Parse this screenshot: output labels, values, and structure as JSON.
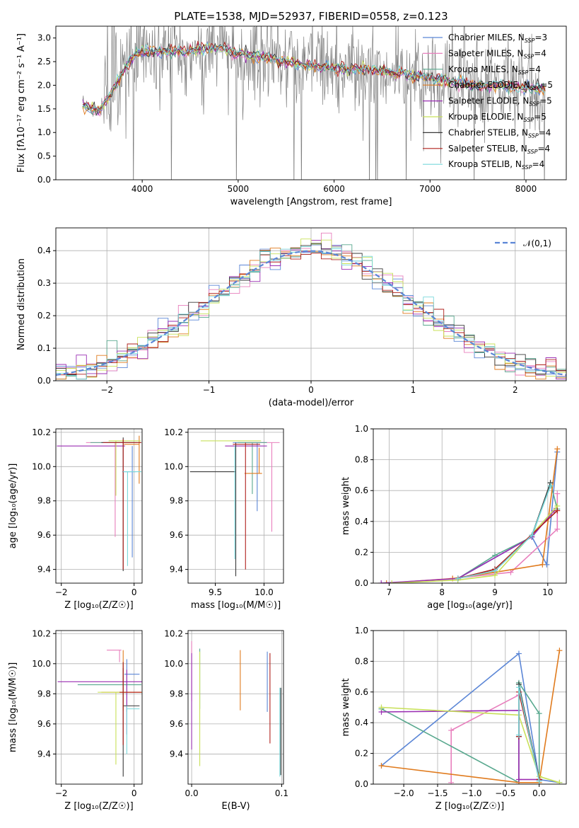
{
  "figure": {
    "title": "PLATE=1538, MJD=52937, FIBERID=0558, z=0.123"
  },
  "series_styles": [
    {
      "name": "Chabrier MILES",
      "nssp": "3",
      "color": "#5b86d6"
    },
    {
      "name": "Salpeter MILES",
      "nssp": "4",
      "color": "#e87fbd"
    },
    {
      "name": "Kroupa MILES",
      "nssp": "4",
      "color": "#58a88e"
    },
    {
      "name": "Chabrier ELODIE",
      "nssp": "5",
      "color": "#e07b1e"
    },
    {
      "name": "Salpeter ELODIE",
      "nssp": "5",
      "color": "#9a2fb3"
    },
    {
      "name": "Kroupa ELODIE",
      "nssp": "5",
      "color": "#c8e05a"
    },
    {
      "name": "Chabrier STELIB",
      "nssp": "4",
      "color": "#3a3a3a"
    },
    {
      "name": "Salpeter STELIB",
      "nssp": "4",
      "color": "#b0201c"
    },
    {
      "name": "Kroupa STELIB",
      "nssp": "4",
      "color": "#78d8dc"
    }
  ],
  "chart_data": [
    {
      "id": "spectrum",
      "type": "line",
      "xlabel": "wavelength [Angstrom, rest frame]",
      "ylabel": "Flux [fλ10⁻¹⁷ erg cm⁻² s⁻¹ A⁻¹]",
      "xlim": [
        3100,
        8420
      ],
      "ylim": [
        0,
        3.25
      ],
      "xticks": [
        4000,
        5000,
        6000,
        7000,
        8000
      ],
      "yticks": [
        0.0,
        0.5,
        1.0,
        1.5,
        2.0,
        2.5,
        3.0
      ],
      "data_color": "#808080",
      "continuum": {
        "x": [
          3380,
          3550,
          3700,
          3800,
          3900,
          4000,
          4100,
          4300,
          4500,
          4800,
          5000,
          5300,
          5600,
          6000,
          6300,
          6600,
          7000,
          7400,
          7800,
          8200
        ],
        "y": [
          1.58,
          1.45,
          1.9,
          2.3,
          2.6,
          2.72,
          2.72,
          2.7,
          2.75,
          2.8,
          2.67,
          2.58,
          2.45,
          2.35,
          2.35,
          2.27,
          2.15,
          2.0,
          1.98,
          1.93
        ]
      },
      "legend": {
        "position": "upper right",
        "nssp_label": "N"
      }
    },
    {
      "id": "residual-histogram",
      "type": "histogram",
      "xlabel": "(data-model)/error",
      "ylabel": "Normed distribution",
      "xlim": [
        -2.5,
        2.5
      ],
      "ylim": [
        0,
        0.47
      ],
      "xticks": [
        -2,
        -1,
        0,
        1,
        2
      ],
      "yticks": [
        0.0,
        0.1,
        0.2,
        0.3,
        0.4
      ],
      "bin_width": 0.1,
      "reference": {
        "label": "𝒩(0,1)",
        "color": "#5b86d6",
        "mean": 0,
        "sigma": 1
      },
      "legend": {
        "position": "upper right"
      }
    },
    {
      "id": "age-vs-Z",
      "type": "errorbar",
      "xlabel": "Z [log₁₀(Z/Z☉)]",
      "ylabel": "age  [log₁₀(age/yr)]",
      "xlim": [
        -2.15,
        0.22
      ],
      "ylim": [
        9.32,
        10.22
      ],
      "xticks": [
        -2,
        0
      ],
      "yticks": [
        9.4,
        9.6,
        9.8,
        10.0,
        10.2
      ],
      "points": [
        {
          "x": -0.05,
          "y": 9.97,
          "xerr": [
            0.27,
            0.1
          ],
          "yerr": [
            0.5,
            0.15
          ],
          "series": 0
        },
        {
          "x": -0.52,
          "y": 10.14,
          "xerr": [
            0.8,
            0.6
          ],
          "yerr": [
            0.55,
            0.0
          ],
          "series": 1
        },
        {
          "x": -0.3,
          "y": 10.14,
          "xerr": [
            0.9,
            0.3
          ],
          "yerr": [
            0.0,
            0.0
          ],
          "series": 2
        },
        {
          "x": 0.14,
          "y": 10.13,
          "xerr": [
            0.42,
            0.0
          ],
          "yerr": [
            0.23,
            0.05
          ],
          "series": 3
        },
        {
          "x": -0.3,
          "y": 10.12,
          "xerr": [
            1.82,
            0.05
          ],
          "yerr": [
            0.0,
            0.0
          ],
          "series": 4
        },
        {
          "x": -0.5,
          "y": 10.15,
          "xerr": [
            0.2,
            0.68
          ],
          "yerr": [
            0.32,
            0.0
          ],
          "series": 5
        },
        {
          "x": -0.3,
          "y": 10.14,
          "xerr": [
            0.6,
            0.48
          ],
          "yerr": [
            0.75,
            0.03
          ],
          "series": 6
        },
        {
          "x": -0.3,
          "y": 10.14,
          "xerr": [
            0.55,
            0.5
          ],
          "yerr": [
            0.74,
            0.02
          ],
          "series": 7
        },
        {
          "x": -0.18,
          "y": 9.97,
          "xerr": [
            0.12,
            0.38
          ],
          "yerr": [
            0.55,
            0.0
          ],
          "series": 8
        }
      ]
    },
    {
      "id": "age-vs-mass",
      "type": "errorbar",
      "xlabel": "mass [log₁₀(M/M☉)]",
      "xlim": [
        9.22,
        10.2
      ],
      "ylim": [
        9.32,
        10.22
      ],
      "xticks": [
        9.5,
        10.0
      ],
      "yticks": [
        9.4,
        9.6,
        9.8,
        10.0,
        10.2
      ],
      "points": [
        {
          "x": 9.93,
          "y": 10.14,
          "xerr": [
            0.25,
            0.1
          ],
          "yerr": [
            0.4,
            0.0
          ],
          "series": 0
        },
        {
          "x": 10.08,
          "y": 10.14,
          "xerr": [
            0.25,
            0.08
          ],
          "yerr": [
            0.52,
            0.0
          ],
          "series": 1
        },
        {
          "x": 9.88,
          "y": 10.14,
          "xerr": [
            0.15,
            0.15
          ],
          "yerr": [
            0.3,
            0.0
          ],
          "series": 2
        },
        {
          "x": 9.95,
          "y": 9.96,
          "xerr": [
            0.15,
            0.03
          ],
          "yerr": [
            0.0,
            0.15
          ],
          "series": 3
        },
        {
          "x": 9.95,
          "y": 10.12,
          "xerr": [
            0.35,
            0.08
          ],
          "yerr": [
            0.0,
            0.0
          ],
          "series": 4
        },
        {
          "x": 9.75,
          "y": 10.15,
          "xerr": [
            0.4,
            0.22
          ],
          "yerr": [
            0.0,
            0.0
          ],
          "series": 5
        },
        {
          "x": 9.71,
          "y": 9.97,
          "xerr": [
            0.47,
            0.0
          ],
          "yerr": [
            0.61,
            0.17
          ],
          "series": 6
        },
        {
          "x": 9.81,
          "y": 10.13,
          "xerr": [
            0.13,
            0.15
          ],
          "yerr": [
            0.73,
            0.01
          ],
          "series": 7
        },
        {
          "x": 9.7,
          "y": 9.97,
          "xerr": [
            0.0,
            0.0
          ],
          "yerr": [
            0.51,
            0.15
          ],
          "series": 8
        }
      ]
    },
    {
      "id": "weight-vs-age",
      "type": "line",
      "xlabel": "age  [log₁₀(age/yr)]",
      "ylabel": "mass weight",
      "xlim": [
        6.7,
        10.35
      ],
      "ylim": [
        0,
        1.0
      ],
      "xticks": [
        7,
        8,
        9,
        10
      ],
      "yticks": [
        0.0,
        0.2,
        0.4,
        0.6,
        0.8,
        1.0
      ],
      "series": [
        {
          "x": [
            8.3,
            9.7,
            9.98,
            10.18
          ],
          "y": [
            0.03,
            0.3,
            0.12,
            0.85
          ]
        },
        {
          "x": [
            8.2,
            9.3,
            10.18,
            10.18
          ],
          "y": [
            0.03,
            0.07,
            0.35,
            0.58
          ]
        },
        {
          "x": [
            8.3,
            9.0,
            9.7,
            10.05,
            10.18
          ],
          "y": [
            0.03,
            0.18,
            0.3,
            0.65,
            0.48
          ]
        },
        {
          "x": [
            6.95,
            8.2,
            9.0,
            9.9,
            10.18
          ],
          "y": [
            0.0,
            0.03,
            0.07,
            0.12,
            0.87
          ]
        },
        {
          "x": [
            6.85,
            8.3,
            9.7,
            10.12
          ],
          "y": [
            0.0,
            0.03,
            0.3,
            0.47
          ]
        },
        {
          "x": [
            7.05,
            8.3,
            9.0,
            10.18
          ],
          "y": [
            0.0,
            0.02,
            0.05,
            0.5
          ]
        },
        {
          "x": [
            8.3,
            9.0,
            9.7,
            10.05
          ],
          "y": [
            0.03,
            0.09,
            0.31,
            0.65
          ]
        },
        {
          "x": [
            8.3,
            9.0,
            10.18
          ],
          "y": [
            0.03,
            0.09,
            0.47
          ]
        },
        {
          "x": [
            8.3,
            9.0,
            9.7,
            10.05
          ],
          "y": [
            0.03,
            0.08,
            0.31,
            0.63
          ]
        }
      ]
    },
    {
      "id": "mass-vs-Z",
      "type": "errorbar",
      "xlabel": "Z [log₁₀(Z/Z☉)]",
      "ylabel": "mass [log₁₀(M/M☉)]",
      "xlim": [
        -2.15,
        0.22
      ],
      "ylim": [
        9.2,
        10.22
      ],
      "xticks": [
        -2,
        0
      ],
      "yticks": [
        9.4,
        9.6,
        9.8,
        10.0,
        10.2
      ],
      "points": [
        {
          "x": -0.2,
          "y": 9.93,
          "xerr": [
            0.07,
            0.35
          ],
          "yerr": [
            0.25,
            0.1
          ],
          "series": 0
        },
        {
          "x": -0.4,
          "y": 10.09,
          "xerr": [
            0.35,
            0.05
          ],
          "yerr": [
            0.08,
            0.0
          ],
          "series": 1
        },
        {
          "x": -0.3,
          "y": 9.86,
          "xerr": [
            1.25,
            0.5
          ],
          "yerr": [
            0.15,
            0.15
          ],
          "series": 2
        },
        {
          "x": -0.3,
          "y": 9.81,
          "xerr": [
            0.6,
            0.6
          ],
          "yerr": [
            0.12,
            0.28
          ],
          "series": 3
        },
        {
          "x": -0.2,
          "y": 9.88,
          "xerr": [
            1.9,
            0.45
          ],
          "yerr": [
            0.35,
            0.08
          ],
          "series": 4
        },
        {
          "x": -0.5,
          "y": 9.81,
          "xerr": [
            0.5,
            0.3
          ],
          "yerr": [
            0.48,
            0.0
          ],
          "series": 5
        },
        {
          "x": -0.3,
          "y": 9.72,
          "xerr": [
            0.0,
            0.45
          ],
          "yerr": [
            0.47,
            0.25
          ],
          "series": 6
        },
        {
          "x": -0.3,
          "y": 9.81,
          "xerr": [
            0.1,
            0.5
          ],
          "yerr": [
            0.35,
            0.2
          ],
          "series": 7
        },
        {
          "x": -0.2,
          "y": 9.7,
          "xerr": [
            0.0,
            0.35
          ],
          "yerr": [
            0.3,
            0.02
          ],
          "series": 8
        }
      ]
    },
    {
      "id": "mass-vs-ebv",
      "type": "errorbar",
      "xlabel": "E(B-V)",
      "xlim": [
        -0.004,
        0.102
      ],
      "ylim": [
        9.2,
        10.22
      ],
      "xticks": [
        0.0,
        0.1
      ],
      "yticks": [
        9.4,
        9.6,
        9.8,
        10.0,
        10.2
      ],
      "points": [
        {
          "x": 0.084,
          "y": 9.88,
          "xerr": [
            0,
            0
          ],
          "yerr": [
            0.2,
            0.2
          ],
          "series": 0
        },
        {
          "x": 0.0,
          "y": 10.0,
          "xerr": [
            0,
            0
          ],
          "yerr": [
            0.25,
            0.15
          ],
          "series": 1
        },
        {
          "x": 0.009,
          "y": 9.9,
          "xerr": [
            0,
            0
          ],
          "yerr": [
            0.2,
            0.2
          ],
          "series": 2
        },
        {
          "x": 0.054,
          "y": 9.89,
          "xerr": [
            0,
            0
          ],
          "yerr": [
            0.2,
            0.2
          ],
          "series": 3
        },
        {
          "x": 0.0,
          "y": 9.75,
          "xerr": [
            0,
            0
          ],
          "yerr": [
            0.32,
            0.32
          ],
          "series": 4
        },
        {
          "x": 0.009,
          "y": 9.7,
          "xerr": [
            0,
            0
          ],
          "yerr": [
            0.38,
            0.38
          ],
          "series": 5
        },
        {
          "x": 0.099,
          "y": 9.55,
          "xerr": [
            0,
            0
          ],
          "yerr": [
            0.29,
            0.29
          ],
          "series": 6
        },
        {
          "x": 0.087,
          "y": 9.82,
          "xerr": [
            0,
            0
          ],
          "yerr": [
            0.35,
            0.25
          ],
          "series": 7
        },
        {
          "x": 0.098,
          "y": 9.6,
          "xerr": [
            0,
            0
          ],
          "yerr": [
            0.35,
            0.24
          ],
          "series": 8
        }
      ]
    },
    {
      "id": "weight-vs-Z",
      "type": "line",
      "xlabel": "Z [log₁₀(Z/Z☉)]",
      "ylabel": "mass weight",
      "xlim": [
        -2.45,
        0.4
      ],
      "ylim": [
        0,
        1.0
      ],
      "xticks": [
        -2.0,
        -1.5,
        -1.0,
        -0.5,
        0.0
      ],
      "yticks": [
        0.0,
        0.2,
        0.4,
        0.6,
        0.8,
        1.0
      ],
      "series": [
        {
          "x": [
            -2.33,
            -0.3,
            0.0,
            0.3
          ],
          "y": [
            0.12,
            0.85,
            0.03,
            0.01
          ]
        },
        {
          "x": [
            -1.3,
            -1.3,
            -0.3,
            -0.3,
            0.0
          ],
          "y": [
            0.01,
            0.35,
            0.58,
            0.03,
            0.03
          ]
        },
        {
          "x": [
            -2.33,
            -0.3,
            -0.3,
            0.0,
            0.0
          ],
          "y": [
            0.49,
            0.01,
            0.66,
            0.46,
            0.03
          ]
        },
        {
          "x": [
            -2.33,
            -0.3,
            0.0,
            0.3
          ],
          "y": [
            0.12,
            0.01,
            0.01,
            0.87
          ]
        },
        {
          "x": [
            -2.33,
            -0.3,
            -0.3,
            0.0
          ],
          "y": [
            0.47,
            0.48,
            0.03,
            0.03
          ]
        },
        {
          "x": [
            -2.33,
            -0.3,
            0.0,
            0.3
          ],
          "y": [
            0.5,
            0.45,
            0.05,
            0.01
          ]
        },
        {
          "x": [
            -0.3,
            -0.3,
            0.0
          ],
          "y": [
            0.31,
            0.65,
            0.03
          ]
        },
        {
          "x": [
            -0.3,
            -0.3,
            0.0
          ],
          "y": [
            0.31,
            0.6,
            0.03
          ]
        },
        {
          "x": [
            -0.3,
            -0.3,
            0.0
          ],
          "y": [
            0.32,
            0.63,
            0.02
          ]
        }
      ]
    }
  ]
}
